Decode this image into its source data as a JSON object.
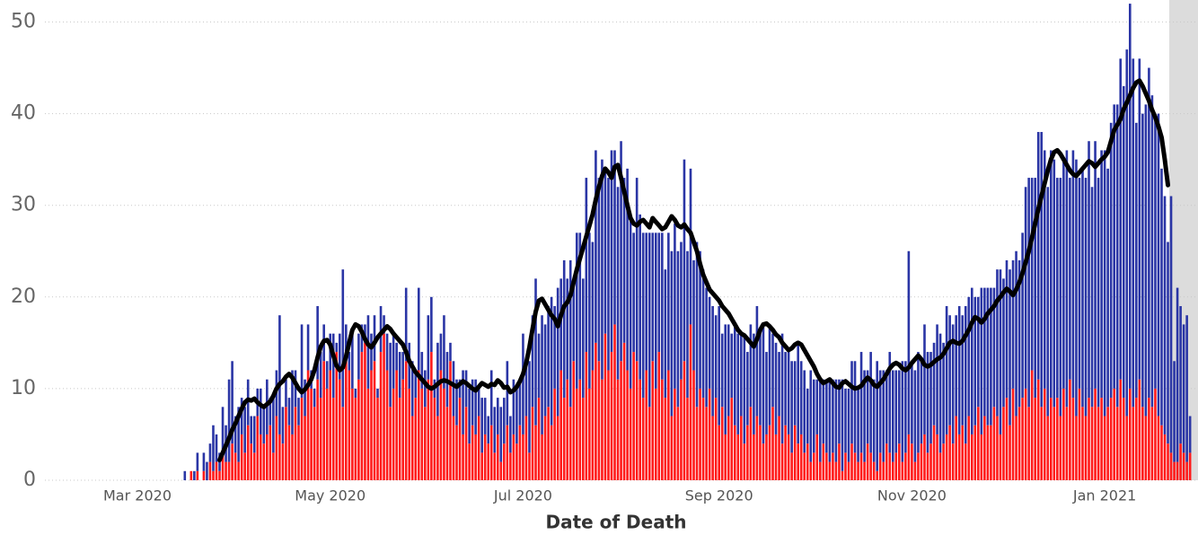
{
  "chart_data": {
    "type": "bar",
    "stacked": true,
    "grid": true,
    "x_label": "Date of Death",
    "ylim": [
      0,
      52.4
    ],
    "yticks": [
      0,
      10,
      20,
      30,
      40,
      50
    ],
    "categories": [
      "Mar 2020",
      null,
      null,
      null,
      null,
      null,
      null,
      null,
      null,
      null,
      null,
      null,
      null,
      null,
      null,
      null,
      null,
      null,
      null,
      null,
      null,
      null,
      null,
      null,
      null,
      null,
      null,
      null,
      null,
      null,
      null,
      null,
      null,
      null,
      null,
      null,
      null,
      null,
      null,
      null,
      null,
      null,
      null,
      null,
      null,
      null,
      null,
      null,
      null,
      null,
      null,
      null,
      null,
      null,
      null,
      null,
      null,
      null,
      null,
      null,
      null,
      "May 2020",
      null,
      null,
      null,
      null,
      null,
      null,
      null,
      null,
      null,
      null,
      null,
      null,
      null,
      null,
      null,
      null,
      null,
      null,
      null,
      null,
      null,
      null,
      null,
      null,
      null,
      null,
      null,
      null,
      null,
      null,
      null,
      null,
      null,
      null,
      null,
      null,
      null,
      null,
      null,
      null,
      null,
      null,
      null,
      null,
      null,
      null,
      null,
      null,
      null,
      null,
      null,
      null,
      null,
      null,
      null,
      null,
      null,
      null,
      null,
      null,
      "Jul 2020",
      null,
      null,
      null,
      null,
      null,
      null,
      null,
      null,
      null,
      null,
      null,
      null,
      null,
      null,
      null,
      null,
      null,
      null,
      null,
      null,
      null,
      null,
      null,
      null,
      null,
      null,
      null,
      null,
      null,
      null,
      null,
      null,
      null,
      null,
      null,
      null,
      null,
      null,
      null,
      null,
      null,
      null,
      null,
      null,
      null,
      null,
      null,
      null,
      null,
      null,
      null,
      null,
      null,
      null,
      null,
      null,
      null,
      null,
      null,
      null,
      null,
      "Sep 2020",
      null,
      null,
      null,
      null,
      null,
      null,
      null,
      null,
      null,
      null,
      null,
      null,
      null,
      null,
      null,
      null,
      null,
      null,
      null,
      null,
      null,
      null,
      null,
      null,
      null,
      null,
      null,
      null,
      null,
      null,
      null,
      null,
      null,
      null,
      null,
      null,
      null,
      null,
      null,
      null,
      null,
      null,
      null,
      null,
      null,
      null,
      null,
      null,
      null,
      null,
      null,
      null,
      null,
      null,
      null,
      null,
      null,
      null,
      null,
      null,
      "Nov 2020",
      null,
      null,
      null,
      null,
      null,
      null,
      null,
      null,
      null,
      null,
      null,
      null,
      null,
      null,
      null,
      null,
      null,
      null,
      null,
      null,
      null,
      null,
      null,
      null,
      null,
      null,
      null,
      null,
      null,
      null,
      null,
      null,
      null,
      null,
      null,
      null,
      null,
      null,
      null,
      null,
      null,
      null,
      null,
      null,
      null,
      null,
      null,
      null,
      null,
      null,
      null,
      null,
      null,
      null,
      null,
      null,
      null,
      null,
      null,
      null,
      "Jan 2021",
      null,
      null,
      null,
      null,
      null,
      null,
      null,
      null,
      null,
      null,
      null,
      null,
      null,
      null,
      null,
      null,
      null,
      null,
      null,
      null,
      null,
      null,
      null,
      null,
      null,
      null,
      null
    ],
    "series": [
      {
        "color": "#ff1a1a",
        "values": [
          null,
          null,
          null,
          null,
          null,
          null,
          null,
          null,
          null,
          null,
          null,
          null,
          null,
          null,
          null,
          0,
          0,
          1,
          0,
          1,
          0,
          1,
          0,
          2,
          1,
          2,
          1,
          3,
          2,
          2,
          4,
          3,
          2,
          5,
          3,
          6,
          4,
          3,
          7,
          5,
          4,
          5,
          6,
          3,
          7,
          5,
          4,
          8,
          6,
          5,
          8,
          6,
          9,
          7,
          12,
          10,
          8,
          11,
          9,
          13,
          10,
          12,
          9,
          14,
          11,
          8,
          13,
          12,
          10,
          9,
          11,
          14,
          15,
          10,
          12,
          13,
          9,
          14,
          16,
          12,
          8,
          10,
          12,
          9,
          11,
          13,
          10,
          7,
          9,
          12,
          10,
          8,
          11,
          14,
          9,
          7,
          12,
          10,
          8,
          13,
          7,
          6,
          9,
          5,
          8,
          4,
          6,
          5,
          7,
          3,
          5,
          4,
          6,
          3,
          5,
          2,
          4,
          6,
          3,
          5,
          4,
          6,
          5,
          7,
          3,
          8,
          6,
          9,
          5,
          7,
          8,
          6,
          10,
          7,
          12,
          9,
          11,
          8,
          13,
          10,
          11,
          9,
          14,
          10,
          12,
          15,
          13,
          11,
          16,
          12,
          14,
          17,
          11,
          13,
          15,
          12,
          10,
          14,
          13,
          11,
          9,
          12,
          8,
          13,
          10,
          14,
          11,
          9,
          12,
          7,
          10,
          8,
          11,
          13,
          9,
          17,
          12,
          8,
          10,
          9,
          8,
          10,
          7,
          9,
          6,
          8,
          5,
          7,
          9,
          6,
          5,
          7,
          4,
          6,
          8,
          5,
          7,
          6,
          4,
          5,
          6,
          8,
          5,
          7,
          4,
          6,
          5,
          3,
          6,
          4,
          5,
          3,
          4,
          2,
          3,
          5,
          2,
          4,
          3,
          2,
          3,
          2,
          4,
          1,
          3,
          2,
          4,
          3,
          2,
          3,
          2,
          4,
          3,
          2,
          1,
          3,
          2,
          4,
          3,
          2,
          3,
          4,
          2,
          3,
          5,
          4,
          2,
          3,
          4,
          5,
          3,
          4,
          6,
          5,
          3,
          4,
          5,
          6,
          4,
          7,
          5,
          6,
          4,
          7,
          5,
          6,
          8,
          5,
          7,
          6,
          6,
          8,
          7,
          5,
          8,
          9,
          6,
          10,
          7,
          8,
          9,
          10,
          8,
          12,
          9,
          11,
          8,
          10,
          7,
          9,
          8,
          9,
          7,
          10,
          8,
          11,
          9,
          7,
          10,
          8,
          7,
          9,
          8,
          10,
          8,
          9,
          7,
          8,
          9,
          10,
          8,
          11,
          9,
          7,
          10,
          8,
          9,
          11,
          8,
          7,
          9,
          8,
          10,
          7,
          6,
          5,
          4,
          3,
          2,
          2,
          4,
          3,
          2,
          3
        ]
      },
      {
        "color": "#2a35a5",
        "values": [
          null,
          null,
          null,
          null,
          null,
          null,
          null,
          null,
          null,
          null,
          null,
          null,
          null,
          null,
          null,
          1,
          0,
          0,
          1,
          2,
          0,
          2,
          2,
          2,
          5,
          3,
          2,
          5,
          4,
          9,
          9,
          4,
          6,
          4,
          5,
          5,
          3,
          4,
          3,
          5,
          4,
          6,
          3,
          6,
          5,
          13,
          4,
          3,
          3,
          7,
          4,
          3,
          8,
          4,
          5,
          2,
          2,
          8,
          5,
          4,
          3,
          4,
          7,
          1,
          5,
          15,
          4,
          2,
          6,
          1,
          5,
          3,
          2,
          8,
          4,
          5,
          1,
          5,
          2,
          4,
          7,
          6,
          3,
          5,
          3,
          8,
          5,
          6,
          3,
          9,
          4,
          4,
          7,
          6,
          2,
          8,
          4,
          8,
          6,
          2,
          6,
          5,
          2,
          7,
          4,
          6,
          5,
          6,
          3,
          6,
          4,
          3,
          6,
          5,
          4,
          6,
          5,
          7,
          4,
          6,
          6,
          5,
          11,
          6,
          10,
          10,
          16,
          7,
          13,
          10,
          11,
          14,
          9,
          14,
          10,
          15,
          11,
          16,
          9,
          17,
          16,
          13,
          19,
          17,
          14,
          21,
          20,
          24,
          18,
          21,
          22,
          19,
          21,
          24,
          18,
          22,
          19,
          13,
          20,
          18,
          18,
          15,
          19,
          14,
          17,
          13,
          16,
          14,
          15,
          18,
          18,
          17,
          15,
          22,
          16,
          17,
          12,
          18,
          15,
          14,
          13,
          10,
          12,
          9,
          13,
          8,
          12,
          10,
          7,
          11,
          11,
          9,
          12,
          8,
          9,
          11,
          12,
          10,
          13,
          9,
          11,
          8,
          10,
          7,
          12,
          8,
          9,
          10,
          7,
          11,
          8,
          9,
          6,
          10,
          8,
          6,
          9,
          7,
          8,
          9,
          8,
          9,
          7,
          10,
          7,
          8,
          9,
          10,
          8,
          11,
          10,
          8,
          11,
          9,
          12,
          9,
          10,
          8,
          11,
          10,
          9,
          8,
          11,
          10,
          20,
          9,
          10,
          11,
          9,
          12,
          11,
          10,
          9,
          12,
          13,
          11,
          14,
          12,
          13,
          11,
          14,
          12,
          15,
          13,
          16,
          14,
          12,
          16,
          14,
          15,
          15,
          13,
          16,
          18,
          14,
          15,
          17,
          14,
          18,
          16,
          18,
          22,
          25,
          21,
          24,
          27,
          30,
          26,
          25,
          27,
          27,
          24,
          26,
          25,
          28,
          22,
          27,
          28,
          23,
          26,
          26,
          28,
          24,
          27,
          25,
          27,
          29,
          26,
          30,
          31,
          33,
          35,
          34,
          40,
          42,
          38,
          30,
          35,
          32,
          34,
          36,
          34,
          30,
          33,
          28,
          26,
          22,
          28,
          11,
          19,
          15,
          14,
          16,
          4
        ]
      },
      {
        "type": "line",
        "color": "#000000",
        "values": [
          null,
          null,
          null,
          null,
          null,
          null,
          null,
          null,
          null,
          null,
          null,
          null,
          null,
          null,
          null,
          null,
          null,
          null,
          null,
          null,
          null,
          null,
          null,
          null,
          null,
          null,
          2.2,
          3,
          3.8,
          4.6,
          5.5,
          6.2,
          7,
          7.8,
          8.5,
          8.8,
          8.7,
          8.9,
          8.5,
          8.2,
          8,
          8.3,
          8.6,
          9.2,
          10,
          10.5,
          10.8,
          11.3,
          11.6,
          11.2,
          10.6,
          10,
          9.6,
          9.9,
          10.4,
          11,
          12,
          13.4,
          14.6,
          15.2,
          15.3,
          14.8,
          13.6,
          12.5,
          12,
          12.3,
          13.5,
          15,
          16.4,
          17,
          16.8,
          16.2,
          15.4,
          14.8,
          14.5,
          15,
          15.6,
          16,
          16.4,
          16.8,
          16.5,
          16,
          15.6,
          15.2,
          14.8,
          14,
          13,
          12.4,
          11.8,
          11.4,
          11,
          10.6,
          10.2,
          10,
          10.2,
          10.5,
          10.8,
          10.9,
          10.8,
          10.6,
          10.4,
          10.2,
          10.5,
          10.8,
          10.6,
          10.3,
          10,
          9.8,
          10.2,
          10.6,
          10.4,
          10.2,
          10.5,
          10.4,
          10.9,
          10.6,
          10.1,
          10.2,
          9.6,
          9.8,
          10.2,
          10.8,
          11.6,
          12.8,
          14.5,
          16.5,
          18.4,
          19.6,
          19.8,
          19.2,
          18.6,
          18,
          17.6,
          16.8,
          18,
          19,
          19.4,
          20.2,
          21.6,
          23,
          24.2,
          25.4,
          26.6,
          27.8,
          29,
          30.6,
          32,
          33.2,
          34,
          33.6,
          33,
          34.2,
          34.4,
          33,
          31.5,
          30,
          28.6,
          28,
          27.8,
          28.2,
          28.4,
          28,
          27.6,
          28.6,
          28.2,
          27.8,
          27.4,
          27.6,
          28.2,
          28.8,
          28.4,
          27.8,
          27.6,
          27.9,
          27.4,
          27,
          26,
          25,
          23.6,
          22.4,
          21.6,
          20.8,
          20.4,
          20,
          19.6,
          19,
          18.6,
          18.2,
          17.6,
          17,
          16.4,
          16,
          15.8,
          15.4,
          15,
          14.6,
          15.4,
          16.4,
          17,
          17.1,
          16.8,
          16.4,
          15.9,
          15.6,
          15,
          14.6,
          14.2,
          14.4,
          14.8,
          15,
          14.8,
          14.2,
          13.6,
          13,
          12.4,
          11.6,
          11,
          10.6,
          10.8,
          11,
          10.6,
          10.2,
          10.1,
          10.6,
          10.8,
          10.5,
          10.2,
          10,
          10.1,
          10.3,
          10.8,
          11.2,
          10.9,
          10.4,
          10.2,
          10.6,
          11,
          11.6,
          12.2,
          12.6,
          12.8,
          12.6,
          12.2,
          12,
          12.3,
          12.8,
          13.2,
          13.6,
          13.2,
          12.6,
          12.4,
          12.6,
          12.9,
          13.2,
          13.4,
          13.8,
          14.4,
          15,
          15.2,
          15,
          14.9,
          15.2,
          15.8,
          16.4,
          17.2,
          17.8,
          17.6,
          17.2,
          17.6,
          18.2,
          18.6,
          19,
          19.6,
          20,
          20.5,
          20.9,
          20.6,
          20.2,
          20.8,
          21.6,
          22.6,
          23.8,
          25,
          26.5,
          28,
          29.6,
          31,
          32.4,
          33.8,
          35,
          35.8,
          36,
          35.6,
          35,
          34.4,
          33.8,
          33.4,
          33.2,
          33.6,
          34,
          34.4,
          34.8,
          34.6,
          34.2,
          34.6,
          35,
          35.3,
          35.8,
          37,
          38.2,
          38.8,
          39.4,
          40.5,
          41.2,
          42,
          42.8,
          43.4,
          43.6,
          43,
          42.2,
          41.4,
          40.4,
          39.6,
          38.6,
          37.4,
          35,
          32.2,
          null,
          null,
          null,
          null,
          null,
          null,
          null
        ]
      }
    ]
  }
}
